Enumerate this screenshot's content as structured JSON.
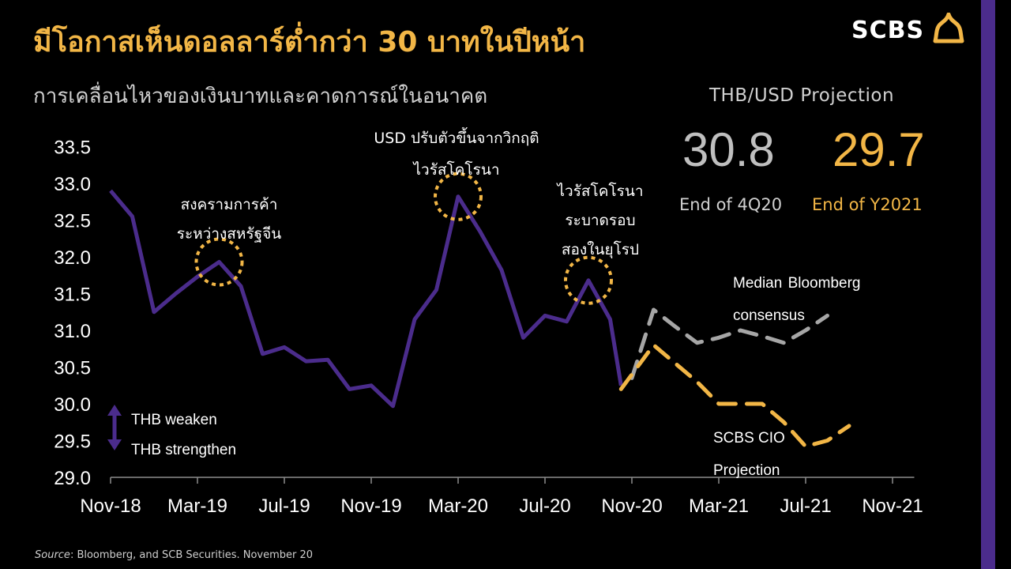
{
  "header": {
    "title": "มีโอกาสเห็นดอลลาร์ต่ำกว่า 30 บาทในปีหน้า",
    "subtitle": "การเคลื่อนไหวของเงินบาทและคาดการณ์ในอนาคต",
    "logo_text": "SCBS"
  },
  "projection": {
    "heading": "THB/USD Projection",
    "value_1": "30.8",
    "label_1": "End of 4Q20",
    "value_2": "29.7",
    "label_2": "End of Y2021"
  },
  "source": {
    "prefix": "Source",
    "text": ": Bloomberg, and SCB Securities. November 20"
  },
  "colors": {
    "background": "#000000",
    "title": "#f2b646",
    "actual": "#4b2c8c",
    "consensus": "#a6a6a6",
    "cio": "#f2b646",
    "circle": "#f2b646",
    "sidebar": "#4b2c8c"
  },
  "chart_data": {
    "type": "line",
    "title": "",
    "xlabel": "",
    "ylabel": "",
    "ylim": [
      29.0,
      33.5
    ],
    "y_ticks": [
      "33.5",
      "33.0",
      "32.5",
      "32.0",
      "31.5",
      "31.0",
      "30.5",
      "30.0",
      "29.5",
      "29.0"
    ],
    "x_ticks": [
      "Nov-18",
      "Mar-19",
      "Jul-19",
      "Nov-19",
      "Mar-20",
      "Jul-20",
      "Nov-20",
      "Mar-21",
      "Jul-21",
      "Nov-21"
    ],
    "grid": false,
    "series": [
      {
        "name": "",
        "color": "#4b2c8c",
        "style": "solid",
        "points": [
          [
            0,
            32.9
          ],
          [
            1,
            32.55
          ],
          [
            2,
            31.25
          ],
          [
            3,
            31.5
          ],
          [
            4,
            31.73
          ],
          [
            5,
            31.93
          ],
          [
            6,
            31.6
          ],
          [
            7,
            30.68
          ],
          [
            8,
            30.77
          ],
          [
            9,
            30.58
          ],
          [
            10,
            30.6
          ],
          [
            11,
            30.2
          ],
          [
            12,
            30.25
          ],
          [
            13,
            29.97
          ],
          [
            14,
            31.15
          ],
          [
            15,
            31.55
          ],
          [
            16,
            32.82
          ],
          [
            17,
            32.35
          ],
          [
            18,
            31.82
          ],
          [
            19,
            30.9
          ],
          [
            20,
            31.2
          ],
          [
            21,
            31.12
          ],
          [
            22,
            31.68
          ],
          [
            23,
            31.15
          ],
          [
            23.5,
            30.25
          ]
        ]
      },
      {
        "name": "Median Bloomberg consensus",
        "color": "#a6a6a6",
        "style": "dashed",
        "points": [
          [
            24,
            30.35
          ],
          [
            25,
            31.28
          ],
          [
            26,
            31.05
          ],
          [
            27,
            30.83
          ],
          [
            28,
            30.9
          ],
          [
            29,
            31.0
          ],
          [
            30,
            30.92
          ],
          [
            31,
            30.83
          ],
          [
            32,
            31.0
          ],
          [
            33,
            31.2
          ]
        ]
      },
      {
        "name": "SCBS CIO Projection",
        "color": "#f2b646",
        "style": "dashed",
        "points": [
          [
            23.5,
            30.2
          ],
          [
            25,
            30.8
          ],
          [
            27,
            30.3
          ],
          [
            28,
            30.0
          ],
          [
            30,
            30.0
          ],
          [
            31,
            29.75
          ],
          [
            32,
            29.42
          ],
          [
            33,
            29.5
          ],
          [
            34,
            29.7
          ]
        ]
      }
    ],
    "annotations": [
      {
        "lines": [
          "สงครามการค้า",
          "ระหว่างสหรัฐจีน"
        ],
        "at": [
          5,
          31.93
        ]
      },
      {
        "lines": [
          "USD ปรับตัวขึ้นจากวิกฤติ",
          "ไวรัสโคโรนา"
        ],
        "at": [
          16,
          32.82
        ]
      },
      {
        "lines": [
          "ไวรัสโคโรนา",
          "ระบาดรอบ",
          "สองในยุโรป"
        ],
        "at": [
          22,
          31.68
        ]
      }
    ],
    "legend": {
      "up": "THB weaken",
      "down": "THB strengthen"
    }
  }
}
